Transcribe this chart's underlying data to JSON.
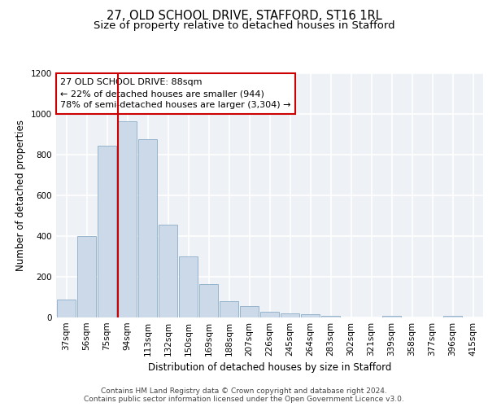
{
  "title_line1": "27, OLD SCHOOL DRIVE, STAFFORD, ST16 1RL",
  "title_line2": "Size of property relative to detached houses in Stafford",
  "xlabel": "Distribution of detached houses by size in Stafford",
  "ylabel": "Number of detached properties",
  "bar_labels": [
    "37sqm",
    "56sqm",
    "75sqm",
    "94sqm",
    "113sqm",
    "132sqm",
    "150sqm",
    "169sqm",
    "188sqm",
    "207sqm",
    "226sqm",
    "245sqm",
    "264sqm",
    "283sqm",
    "302sqm",
    "321sqm",
    "339sqm",
    "358sqm",
    "377sqm",
    "396sqm",
    "415sqm"
  ],
  "bar_values": [
    90,
    400,
    845,
    965,
    875,
    455,
    300,
    165,
    80,
    55,
    30,
    20,
    15,
    10,
    2,
    2,
    10,
    2,
    2,
    10,
    2
  ],
  "bar_color": "#ccd9e8",
  "bar_edgecolor": "#8aaec8",
  "vline_color": "#cc0000",
  "annotation_text": "27 OLD SCHOOL DRIVE: 88sqm\n← 22% of detached houses are smaller (944)\n78% of semi-detached houses are larger (3,304) →",
  "annotation_box_edgecolor": "#cc0000",
  "annotation_box_facecolor": "#ffffff",
  "ylim": [
    0,
    1200
  ],
  "yticks": [
    0,
    200,
    400,
    600,
    800,
    1000,
    1200
  ],
  "footer_text": "Contains HM Land Registry data © Crown copyright and database right 2024.\nContains public sector information licensed under the Open Government Licence v3.0.",
  "background_color": "#eef2f7",
  "grid_color": "#ffffff",
  "title_fontsize": 10.5,
  "subtitle_fontsize": 9.5,
  "axis_label_fontsize": 8.5,
  "tick_fontsize": 7.5,
  "annotation_fontsize": 8,
  "footer_fontsize": 6.5
}
